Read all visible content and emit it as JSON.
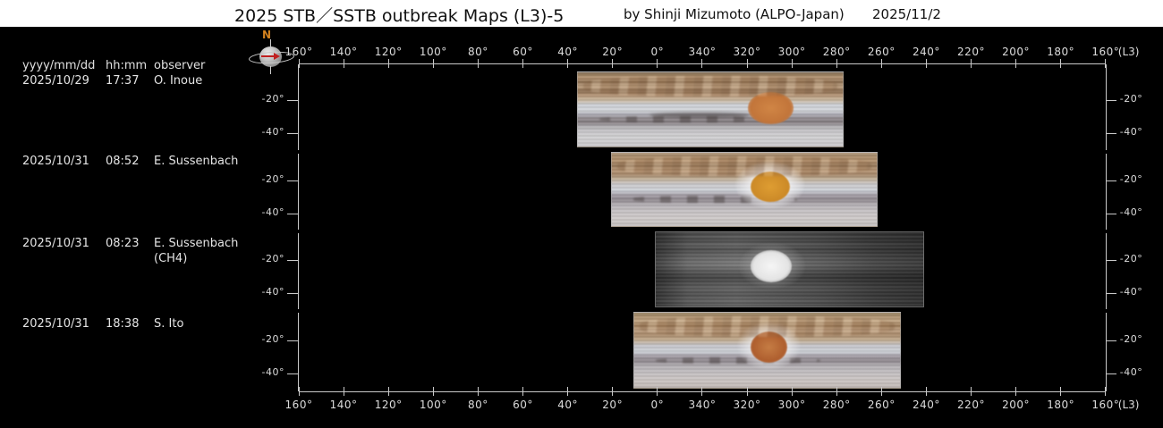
{
  "window": {
    "title_main": "2025 STB／SSTB outbreak Maps (L3)-5",
    "byline": "by Shinji Mizumoto (ALPO-Japan)",
    "date": "2025/11/2"
  },
  "observation_table": {
    "headers": {
      "date": "yyyy/mm/dd",
      "time": "hh:mm",
      "observer": "observer"
    },
    "rows": [
      {
        "date": "2025/10/29",
        "time": "17:37",
        "observer": "O. Inoue",
        "note": ""
      },
      {
        "date": "2025/10/31",
        "time": "08:52",
        "observer": "E. Sussenbach",
        "note": ""
      },
      {
        "date": "2025/10/31",
        "time": "08:23",
        "observer": "E. Sussenbach",
        "note": "(CH4)"
      },
      {
        "date": "2025/10/31",
        "time": "18:38",
        "observer": "S. Ito",
        "note": ""
      }
    ]
  },
  "axes": {
    "longitude_ticks": [
      "160°",
      "140°",
      "120°",
      "100°",
      "80°",
      "60°",
      "40°",
      "20°",
      "0°",
      "340°",
      "320°",
      "300°",
      "280°",
      "260°",
      "240°",
      "220°",
      "200°",
      "180°",
      "160°"
    ],
    "system_label": "(L3)",
    "latitude_ticks": [
      "-20°",
      "-40°"
    ]
  },
  "compass": {
    "north": "N"
  },
  "maps": [
    {
      "strip": 1,
      "type": "visible-color",
      "feature": "great-red-spot"
    },
    {
      "strip": 2,
      "type": "visible-color",
      "feature": "great-red-spot"
    },
    {
      "strip": 3,
      "type": "ch4-methane-grayscale",
      "feature": "great-red-spot-bright"
    },
    {
      "strip": 4,
      "type": "visible-color",
      "feature": "great-red-spot"
    }
  ],
  "colors": {
    "background": "#000000",
    "titlebar": "#ffffff",
    "axis_text": "#dcdcdc",
    "north_label": "#d4821e",
    "grs_orange": "#c2753a",
    "grs_yellow": "#cc8a28",
    "grs_ch4_bright": "#f0f0f0"
  }
}
